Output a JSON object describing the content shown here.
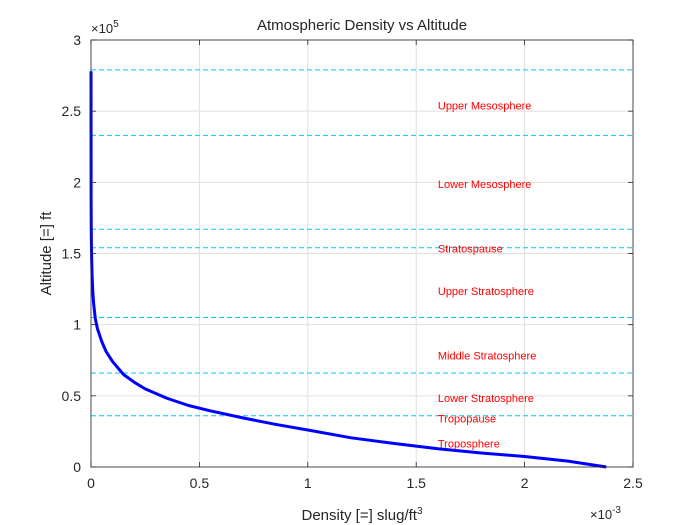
{
  "chart_data": {
    "type": "line",
    "title": "Atmospheric Density vs Altitude",
    "xlabel": "Density [=] slug/ft",
    "xlabel_superscript": "3",
    "ylabel": "Altitude [=] ft",
    "x_exponent_base": "×10",
    "x_exponent": "-3",
    "y_exponent_base": "×10",
    "y_exponent": "5",
    "xlim": [
      0,
      2.5
    ],
    "ylim": [
      0,
      3
    ],
    "x_ticks": [
      0,
      0.5,
      1,
      1.5,
      2,
      2.5
    ],
    "x_tick_labels": [
      "0",
      "0.5",
      "1",
      "1.5",
      "2",
      "2.5"
    ],
    "y_ticks": [
      0,
      0.5,
      1,
      1.5,
      2,
      2.5,
      3
    ],
    "y_tick_labels": [
      "0",
      "0.5",
      "1",
      "1.5",
      "2",
      "2.5",
      "3"
    ],
    "grid": true,
    "series": [
      {
        "color": "#0000ff",
        "x": [
          2.377,
          2.2,
          2.0,
          1.8,
          1.6,
          1.4,
          1.2,
          1.0,
          0.85,
          0.7,
          0.55,
          0.45,
          0.35,
          0.25,
          0.2,
          0.15,
          0.1,
          0.07,
          0.05,
          0.03,
          0.02,
          0.012,
          0.008,
          0.005,
          0.003,
          0.002,
          0.001,
          0.0005,
          0.0001
        ],
        "y": [
          0.0,
          0.041,
          0.074,
          0.098,
          0.128,
          0.165,
          0.205,
          0.26,
          0.3,
          0.345,
          0.395,
          0.432,
          0.483,
          0.549,
          0.595,
          0.65,
          0.74,
          0.81,
          0.88,
          0.97,
          1.04,
          1.15,
          1.24,
          1.35,
          1.46,
          1.55,
          1.7,
          1.9,
          2.78
        ]
      }
    ],
    "boundaries": {
      "color": "#00ccee",
      "style": "dashed",
      "y": [
        0.36,
        0.66,
        1.05,
        1.54,
        1.67,
        2.33,
        2.79
      ]
    },
    "annotations": {
      "color": "#ff0000",
      "x": 1.6,
      "items": [
        {
          "label": "Troposphere",
          "y": 0.165
        },
        {
          "label": "Tropopause",
          "y": 0.34
        },
        {
          "label": "Lower Stratosphere",
          "y": 0.485
        },
        {
          "label": "Middle Stratosphere",
          "y": 0.785
        },
        {
          "label": "Upper Stratosphere",
          "y": 1.235
        },
        {
          "label": "Stratospause",
          "y": 1.535
        },
        {
          "label": "Lower Mesosphere",
          "y": 1.99
        },
        {
          "label": "Upper Mesosphere",
          "y": 2.54
        }
      ]
    }
  }
}
